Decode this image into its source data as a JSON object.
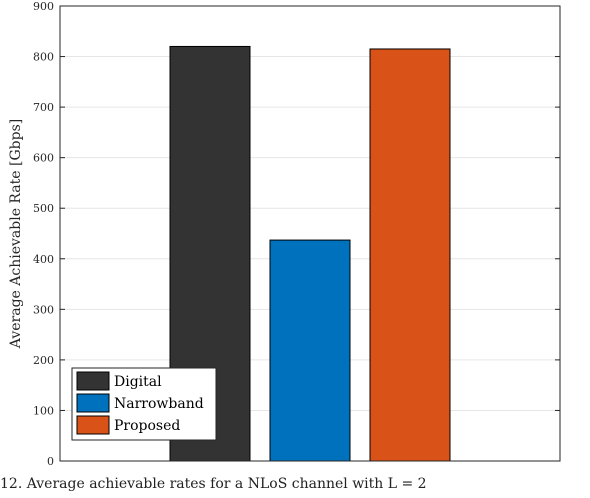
{
  "chart_data": {
    "type": "bar",
    "categories": [
      "Digital",
      "Narrowband",
      "Proposed"
    ],
    "values": [
      820,
      437,
      815
    ],
    "colors": [
      "#333333",
      "#0072BD",
      "#D95319"
    ],
    "xlabel": "",
    "ylabel": "Average Achievable Rate [Gbps]",
    "ylim": [
      0,
      900
    ],
    "yticks": [
      0,
      100,
      200,
      300,
      400,
      500,
      600,
      700,
      800,
      900
    ],
    "grid": true,
    "legend": {
      "position": "bottom-left",
      "entries": [
        "Digital",
        "Narrowband",
        "Proposed"
      ]
    }
  },
  "caption": "12. Average achievable rates for a NLoS channel with L = 2"
}
